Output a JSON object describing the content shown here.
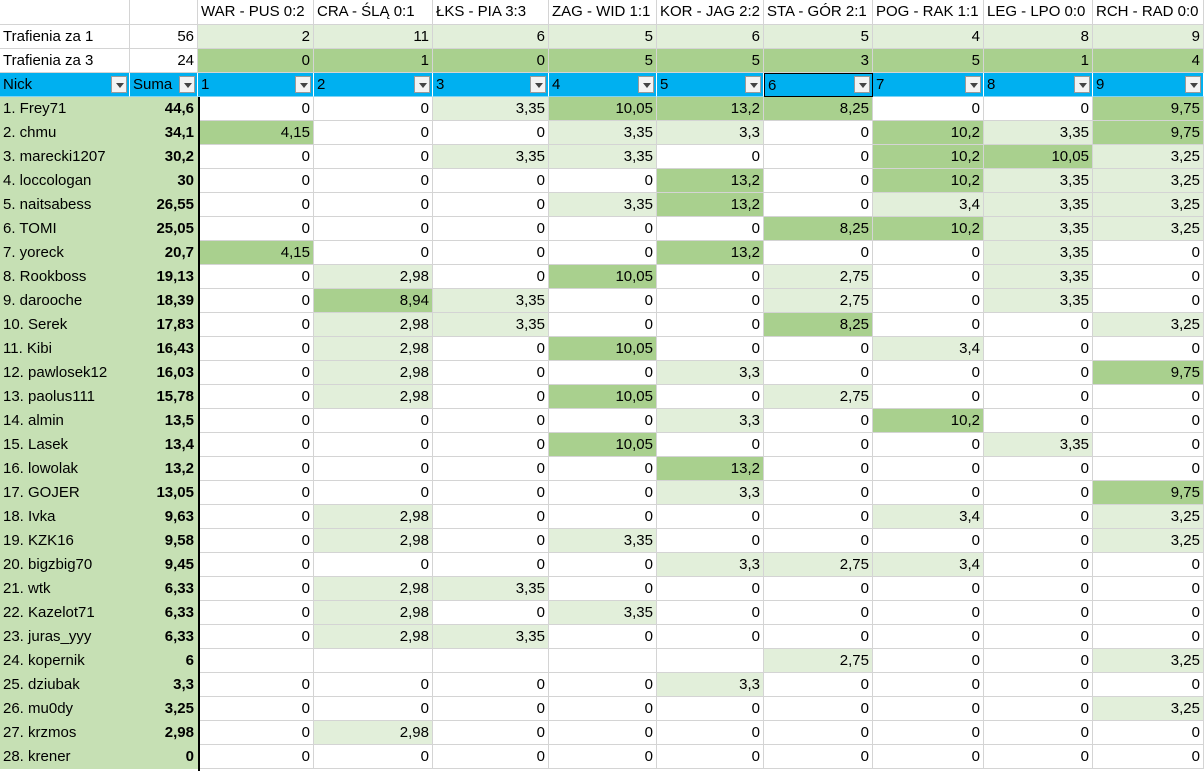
{
  "sheet": {
    "corner": "",
    "matches": [
      "WAR - PUS 0:2",
      "CRA - ŚLĄ 0:1",
      "ŁKS - PIA 3:3",
      "ZAG - WID 1:1",
      "KOR - JAG 2:2",
      "STA - GÓR 2:1",
      "POG - RAK 1:1",
      "LEG - LPO 0:0",
      "RCH - RAD 0:0"
    ],
    "hits1": {
      "label": "Trafienia za 1",
      "total": "56",
      "values": [
        "2",
        "11",
        "6",
        "5",
        "6",
        "5",
        "4",
        "8",
        "9"
      ]
    },
    "hits3": {
      "label": "Trafienia za 3",
      "total": "24",
      "values": [
        "0",
        "1",
        "0",
        "5",
        "5",
        "3",
        "5",
        "1",
        "4"
      ]
    },
    "header": {
      "nick": "Nick",
      "sum": "Suma",
      "rounds": [
        "1",
        "2",
        "3",
        "4",
        "5",
        "6",
        "7",
        "8",
        "9"
      ]
    },
    "colors": {
      "header": "#00b0f0",
      "name_bg": "#c6e0b4",
      "light": "#e2efda",
      "medium": "#a9d08e",
      "hits_bg": "#a9d08e"
    },
    "rows": [
      {
        "nick": "1.  Frey71",
        "sum": "44,6",
        "values": [
          "0",
          "0",
          "3,35",
          "10,05",
          "13,2",
          "8,25",
          "0",
          "0",
          "9,75"
        ]
      },
      {
        "nick": "2.  chmu",
        "sum": "34,1",
        "values": [
          "4,15",
          "0",
          "0",
          "3,35",
          "3,3",
          "0",
          "10,2",
          "3,35",
          "9,75"
        ]
      },
      {
        "nick": "3.  marecki1207",
        "sum": "30,2",
        "values": [
          "0",
          "0",
          "3,35",
          "3,35",
          "0",
          "0",
          "10,2",
          "10,05",
          "3,25"
        ]
      },
      {
        "nick": "4.  loccologan",
        "sum": "30",
        "values": [
          "0",
          "0",
          "0",
          "0",
          "13,2",
          "0",
          "10,2",
          "3,35",
          "3,25"
        ]
      },
      {
        "nick": "5.  naitsabess",
        "sum": "26,55",
        "values": [
          "0",
          "0",
          "0",
          "3,35",
          "13,2",
          "0",
          "3,4",
          "3,35",
          "3,25"
        ]
      },
      {
        "nick": "6.  TOMI",
        "sum": "25,05",
        "values": [
          "0",
          "0",
          "0",
          "0",
          "0",
          "8,25",
          "10,2",
          "3,35",
          "3,25"
        ]
      },
      {
        "nick": "7.  yoreck",
        "sum": "20,7",
        "values": [
          "4,15",
          "0",
          "0",
          "0",
          "13,2",
          "0",
          "0",
          "3,35",
          "0"
        ]
      },
      {
        "nick": "8.  Rookboss",
        "sum": "19,13",
        "values": [
          "0",
          "2,98",
          "0",
          "10,05",
          "0",
          "2,75",
          "0",
          "3,35",
          "0"
        ]
      },
      {
        "nick": "9.  darooche",
        "sum": "18,39",
        "values": [
          "0",
          "8,94",
          "3,35",
          "0",
          "0",
          "2,75",
          "0",
          "3,35",
          "0"
        ]
      },
      {
        "nick": "10.  Serek",
        "sum": "17,83",
        "values": [
          "0",
          "2,98",
          "3,35",
          "0",
          "0",
          "8,25",
          "0",
          "0",
          "3,25"
        ]
      },
      {
        "nick": "11.  Kibi",
        "sum": "16,43",
        "values": [
          "0",
          "2,98",
          "0",
          "10,05",
          "0",
          "0",
          "3,4",
          "0",
          "0"
        ]
      },
      {
        "nick": "12.  pawlosek12",
        "sum": "16,03",
        "values": [
          "0",
          "2,98",
          "0",
          "0",
          "3,3",
          "0",
          "0",
          "0",
          "9,75"
        ]
      },
      {
        "nick": "13.  paolus111",
        "sum": "15,78",
        "values": [
          "0",
          "2,98",
          "0",
          "10,05",
          "0",
          "2,75",
          "0",
          "0",
          "0"
        ]
      },
      {
        "nick": "14.  almin",
        "sum": "13,5",
        "values": [
          "0",
          "0",
          "0",
          "0",
          "3,3",
          "0",
          "10,2",
          "0",
          "0"
        ]
      },
      {
        "nick": "15.  Lasek",
        "sum": "13,4",
        "values": [
          "0",
          "0",
          "0",
          "10,05",
          "0",
          "0",
          "0",
          "3,35",
          "0"
        ]
      },
      {
        "nick": "16.  lowolak",
        "sum": "13,2",
        "values": [
          "0",
          "0",
          "0",
          "0",
          "13,2",
          "0",
          "0",
          "0",
          "0"
        ]
      },
      {
        "nick": "17.  GOJER",
        "sum": "13,05",
        "values": [
          "0",
          "0",
          "0",
          "0",
          "3,3",
          "0",
          "0",
          "0",
          "9,75"
        ]
      },
      {
        "nick": "18.  Ivka",
        "sum": "9,63",
        "values": [
          "0",
          "2,98",
          "0",
          "0",
          "0",
          "0",
          "3,4",
          "0",
          "3,25"
        ]
      },
      {
        "nick": "19.  KZK16",
        "sum": "9,58",
        "values": [
          "0",
          "2,98",
          "0",
          "3,35",
          "0",
          "0",
          "0",
          "0",
          "3,25"
        ]
      },
      {
        "nick": "20.  bigzbig70",
        "sum": "9,45",
        "values": [
          "0",
          "0",
          "0",
          "0",
          "3,3",
          "2,75",
          "3,4",
          "0",
          "0"
        ]
      },
      {
        "nick": "21.  wtk",
        "sum": "6,33",
        "values": [
          "0",
          "2,98",
          "3,35",
          "0",
          "0",
          "0",
          "0",
          "0",
          "0"
        ]
      },
      {
        "nick": "22.  Kazelot71",
        "sum": "6,33",
        "values": [
          "0",
          "2,98",
          "0",
          "3,35",
          "0",
          "0",
          "0",
          "0",
          "0"
        ]
      },
      {
        "nick": "23.  juras_yyy",
        "sum": "6,33",
        "values": [
          "0",
          "2,98",
          "3,35",
          "0",
          "0",
          "0",
          "0",
          "0",
          "0"
        ]
      },
      {
        "nick": "24.  kopernik",
        "sum": "6",
        "values": [
          "",
          "",
          "",
          "",
          "",
          "2,75",
          "0",
          "0",
          "3,25"
        ]
      },
      {
        "nick": "25.  dziubak",
        "sum": "3,3",
        "values": [
          "0",
          "0",
          "0",
          "0",
          "3,3",
          "0",
          "0",
          "0",
          "0"
        ]
      },
      {
        "nick": "26.  mu0dy",
        "sum": "3,25",
        "values": [
          "0",
          "0",
          "0",
          "0",
          "0",
          "0",
          "0",
          "0",
          "3,25"
        ]
      },
      {
        "nick": "27.  krzmos",
        "sum": "2,98",
        "values": [
          "0",
          "2,98",
          "0",
          "0",
          "0",
          "0",
          "0",
          "0",
          "0"
        ]
      },
      {
        "nick": "28.  krener",
        "sum": "0",
        "values": [
          "0",
          "0",
          "0",
          "0",
          "0",
          "0",
          "0",
          "0",
          "0"
        ]
      }
    ]
  }
}
